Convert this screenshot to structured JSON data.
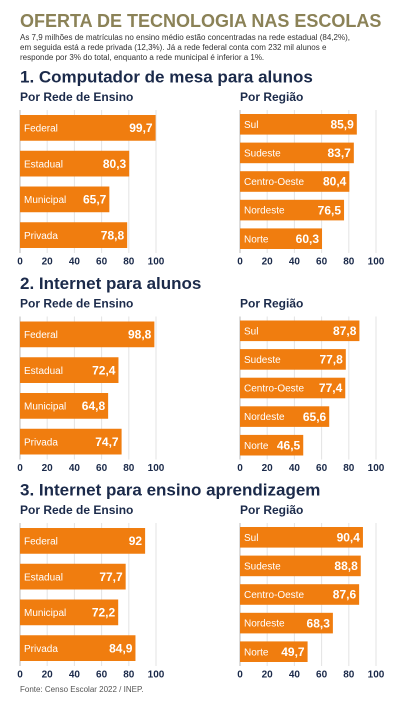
{
  "title": "OFERTA DE TECNOLOGIA NAS ESCOLAS",
  "subtitle": [
    "As 7,9 milhões de matrículas no ensino médio estão concentradas na rede estadual (84,2%),",
    "em seguida está a rede privada (12,3%). Já a rede federal conta com 232 mil alunos e",
    "responde por 3% do total, enquanto a rede municipal é inferior a 1%."
  ],
  "sections": [
    "1. Computador de mesa para alunos",
    "2. Internet para alunos",
    "3. Internet para ensino aprendizagem"
  ],
  "source": "Fonte: Censo Escolar 2022 / INEP.",
  "chart_data": [
    {
      "type": "hbar",
      "title": "Por Rede de Ensino",
      "categories": [
        "Federal",
        "Estadual",
        "Municipal",
        "Privada"
      ],
      "values": [
        99.7,
        80.3,
        65.7,
        78.8
      ],
      "value_labels": [
        "99,7",
        "80,3",
        "65,7",
        "78,8"
      ],
      "color": "#f07d0f",
      "xlim": [
        0,
        100
      ],
      "xticks": [
        0,
        20,
        40,
        60,
        80,
        100
      ],
      "grid": true
    },
    {
      "type": "hbar",
      "title": "Por Região",
      "categories": [
        "Sul",
        "Sudeste",
        "Centro-Oeste",
        "Nordeste",
        "Norte"
      ],
      "values": [
        85.9,
        83.7,
        80.4,
        76.5,
        60.3
      ],
      "value_labels": [
        "85,9",
        "83,7",
        "80,4",
        "76,5",
        "60,3"
      ],
      "color": "#f07d0f",
      "xlim": [
        0,
        100
      ],
      "xticks": [
        0,
        20,
        40,
        60,
        80,
        100
      ],
      "grid": true
    },
    {
      "type": "hbar",
      "title": "Por Rede de Ensino",
      "categories": [
        "Federal",
        "Estadual",
        "Municipal",
        "Privada"
      ],
      "values": [
        98.8,
        72.4,
        64.8,
        74.7
      ],
      "value_labels": [
        "98,8",
        "72,4",
        "64,8",
        "74,7"
      ],
      "color": "#f07d0f",
      "xlim": [
        0,
        100
      ],
      "xticks": [
        0,
        20,
        40,
        60,
        80,
        100
      ],
      "grid": true
    },
    {
      "type": "hbar",
      "title": "Por Região",
      "categories": [
        "Sul",
        "Sudeste",
        "Centro-Oeste",
        "Nordeste",
        "Norte"
      ],
      "values": [
        87.8,
        77.8,
        77.4,
        65.6,
        46.5
      ],
      "value_labels": [
        "87,8",
        "77,8",
        "77,4",
        "65,6",
        "46,5"
      ],
      "color": "#f07d0f",
      "xlim": [
        0,
        100
      ],
      "xticks": [
        0,
        20,
        40,
        60,
        80,
        100
      ],
      "grid": true
    },
    {
      "type": "hbar",
      "title": "Por Rede de Ensino",
      "categories": [
        "Federal",
        "Estadual",
        "Municipal",
        "Privada"
      ],
      "values": [
        92,
        77.7,
        72.2,
        84.9
      ],
      "value_labels": [
        "92",
        "77,7",
        "72,2",
        "84,9"
      ],
      "color": "#f07d0f",
      "xlim": [
        0,
        100
      ],
      "xticks": [
        0,
        20,
        40,
        60,
        80,
        100
      ],
      "grid": true
    },
    {
      "type": "hbar",
      "title": "Por Região",
      "categories": [
        "Sul",
        "Sudeste",
        "Centro-Oeste",
        "Nordeste",
        "Norte"
      ],
      "values": [
        90.4,
        88.8,
        87.6,
        68.3,
        49.7
      ],
      "value_labels": [
        "90,4",
        "88,8",
        "87,6",
        "68,3",
        "49,7"
      ],
      "color": "#f07d0f",
      "xlim": [
        0,
        100
      ],
      "xticks": [
        0,
        20,
        40,
        60,
        80,
        100
      ],
      "grid": true
    }
  ]
}
